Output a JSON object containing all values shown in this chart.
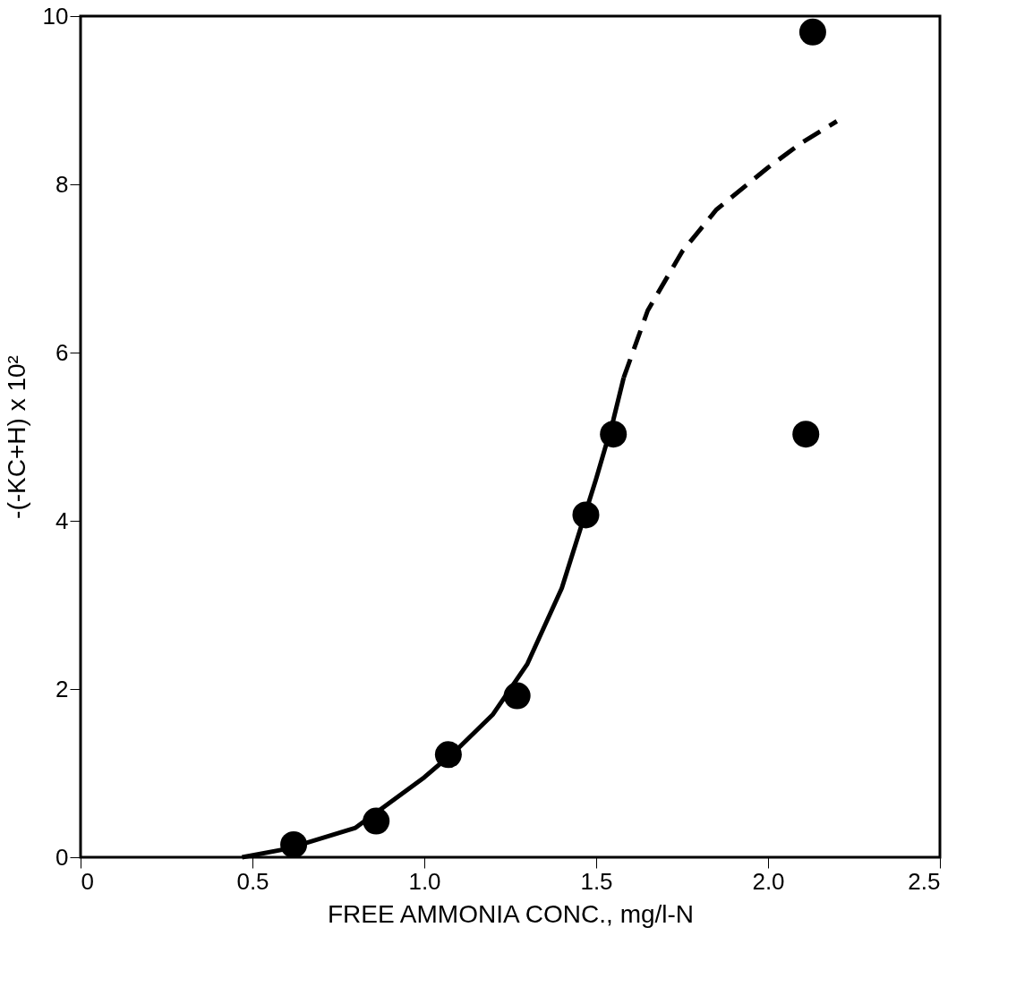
{
  "chart_data": {
    "type": "scatter",
    "xlabel": "FREE AMMONIA CONC., mg/l-N",
    "ylabel": "-(-KC+H) x 10²",
    "xlim": [
      0,
      2.5
    ],
    "ylim": [
      0,
      10
    ],
    "xticks": [
      0,
      0.5,
      {
        "value": 1,
        "label": "1.0"
      },
      1.5,
      {
        "value": 2,
        "label": "2.0"
      },
      2.5
    ],
    "yticks": [
      0,
      2,
      4,
      6,
      8,
      10
    ],
    "grid": false,
    "series": [
      {
        "marker": "circle",
        "color": "#000000",
        "x": [
          0.62,
          0.86,
          1.07,
          1.27,
          1.47,
          1.55,
          2.11,
          2.13
        ],
        "values": [
          0.15,
          0.43,
          1.22,
          1.92,
          4.07,
          5.03,
          5.03,
          9.81
        ]
      },
      {
        "type": "line",
        "line_style": "solid",
        "color": "#000000",
        "x": [
          0.47,
          0.6,
          0.8,
          1.0,
          1.1,
          1.2,
          1.3,
          1.4,
          1.5,
          1.55,
          1.58
        ],
        "values": [
          0,
          0.1,
          0.35,
          0.95,
          1.3,
          1.7,
          2.3,
          3.2,
          4.5,
          5.2,
          5.7
        ]
      },
      {
        "type": "line",
        "line_style": "dashed",
        "color": "#000000",
        "x": [
          1.58,
          1.65,
          1.75,
          1.85,
          2.0,
          2.1,
          2.2
        ],
        "values": [
          5.7,
          6.5,
          7.2,
          7.7,
          8.2,
          8.5,
          8.75
        ]
      }
    ]
  }
}
